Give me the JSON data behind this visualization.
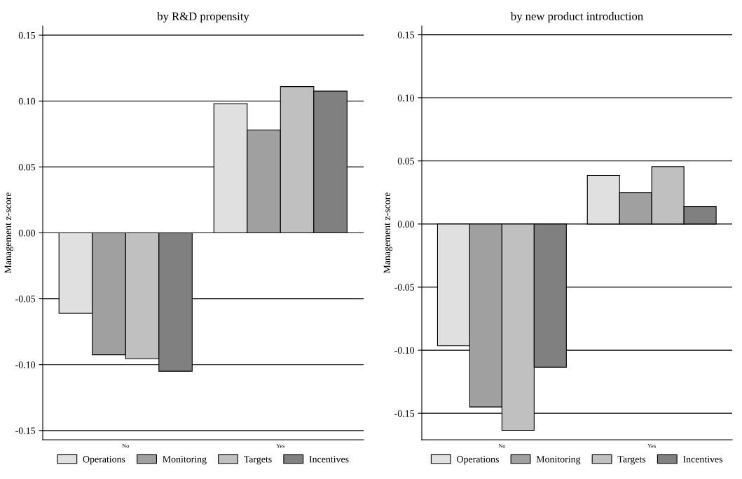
{
  "chart_data": [
    {
      "type": "bar",
      "title": "by R&D propensity",
      "ylabel": "Management z-score",
      "categories": [
        "No",
        "Yes"
      ],
      "series": [
        {
          "name": "Operations",
          "color": "#e0e0e0",
          "values": [
            -0.061,
            0.098
          ]
        },
        {
          "name": "Monitoring",
          "color": "#a0a0a0",
          "values": [
            -0.0925,
            0.078
          ]
        },
        {
          "name": "Targets",
          "color": "#c0c0c0",
          "values": [
            -0.0955,
            0.111
          ]
        },
        {
          "name": "Incentives",
          "color": "#808080",
          "values": [
            -0.105,
            0.1075
          ]
        }
      ],
      "ylim": [
        -0.157,
        0.157
      ],
      "yticks": [
        {
          "value": -0.15,
          "label": "-0.15"
        },
        {
          "value": -0.1,
          "label": "-0.10"
        },
        {
          "value": -0.05,
          "label": "-0.05"
        },
        {
          "value": 0,
          "label": "0.00"
        },
        {
          "value": 0.05,
          "label": "0.05"
        },
        {
          "value": 0.1,
          "label": "0.10"
        },
        {
          "value": 0.15,
          "label": "0.15"
        }
      ],
      "grid": "y",
      "legend": "bottom"
    },
    {
      "type": "bar",
      "title": "by new product introduction",
      "ylabel": "Management z-score",
      "categories": [
        "No",
        "Yes"
      ],
      "series": [
        {
          "name": "Operations",
          "color": "#e0e0e0",
          "values": [
            -0.0965,
            0.0385
          ]
        },
        {
          "name": "Monitoring",
          "color": "#a0a0a0",
          "values": [
            -0.145,
            0.025
          ]
        },
        {
          "name": "Targets",
          "color": "#c0c0c0",
          "values": [
            -0.1635,
            0.0455
          ]
        },
        {
          "name": "Incentives",
          "color": "#808080",
          "values": [
            -0.1135,
            0.014
          ]
        }
      ],
      "ylim": [
        -0.171,
        0.157
      ],
      "yticks": [
        {
          "value": -0.15,
          "label": "-0.15"
        },
        {
          "value": -0.1,
          "label": "-0.10"
        },
        {
          "value": -0.05,
          "label": "-0.05"
        },
        {
          "value": 0,
          "label": "0.00"
        },
        {
          "value": 0.05,
          "label": "0.05"
        },
        {
          "value": 0.1,
          "label": "0.10"
        },
        {
          "value": 0.15,
          "label": "0.15"
        }
      ],
      "grid": "y",
      "legend": "bottom"
    }
  ]
}
